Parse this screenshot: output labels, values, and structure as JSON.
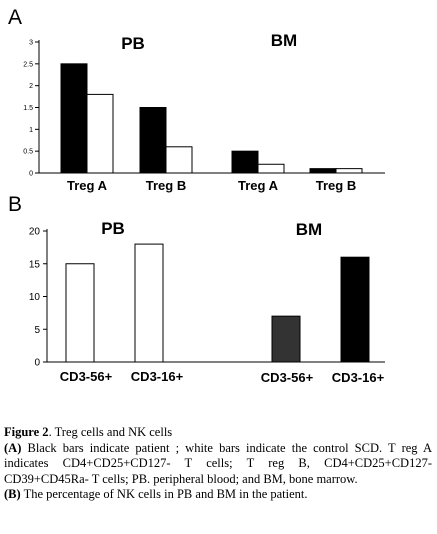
{
  "chart_data": [
    {
      "type": "bar",
      "panel_label": "A",
      "groups": [
        {
          "name": "PB",
          "categories": [
            "Treg A",
            "Treg B"
          ]
        },
        {
          "name": "BM",
          "categories": [
            "Treg A",
            "Treg B"
          ]
        }
      ],
      "series": [
        {
          "color": "#000000",
          "values": [
            2.5,
            1.5,
            0.5,
            0.1
          ]
        },
        {
          "color": "#ffffff",
          "values": [
            1.8,
            0.6,
            0.2,
            0.1
          ]
        }
      ],
      "yticks": [
        "0",
        "0.5",
        "1",
        "1.5",
        "2",
        "2.5",
        "3"
      ],
      "ylim": [
        0,
        3
      ],
      "grid": false,
      "legend": "none"
    },
    {
      "type": "bar",
      "panel_label": "B",
      "groups": [
        {
          "name": "PB",
          "categories": [
            "CD3-56+",
            "CD3-16+"
          ]
        },
        {
          "name": "BM",
          "categories": [
            "CD3-56+",
            "CD3-16+"
          ]
        }
      ],
      "values": [
        15,
        18,
        7,
        16
      ],
      "colors": [
        "#ffffff",
        "#ffffff",
        "#333333",
        "#000000"
      ],
      "yticks": [
        "0",
        "5",
        "10",
        "15",
        "20"
      ],
      "ylim": [
        0,
        20
      ],
      "grid": false,
      "legend": "none"
    }
  ],
  "caption": {
    "figure_label": "Figure 2",
    "figure_title": ". Treg cells and NK cells",
    "a_label": "(A)",
    "a_text": " Black bars indicate patient ; white bars indicate the control SCD. T reg A indicates CD4+CD25+CD127- T cells; T reg B, CD4+CD25+CD127-CD39+CD45Ra- T cells; PB. peripheral blood; and BM, bone marrow.",
    "b_label": "(B)",
    "b_text": " The percentage of NK cells in PB and BM in the patient."
  }
}
